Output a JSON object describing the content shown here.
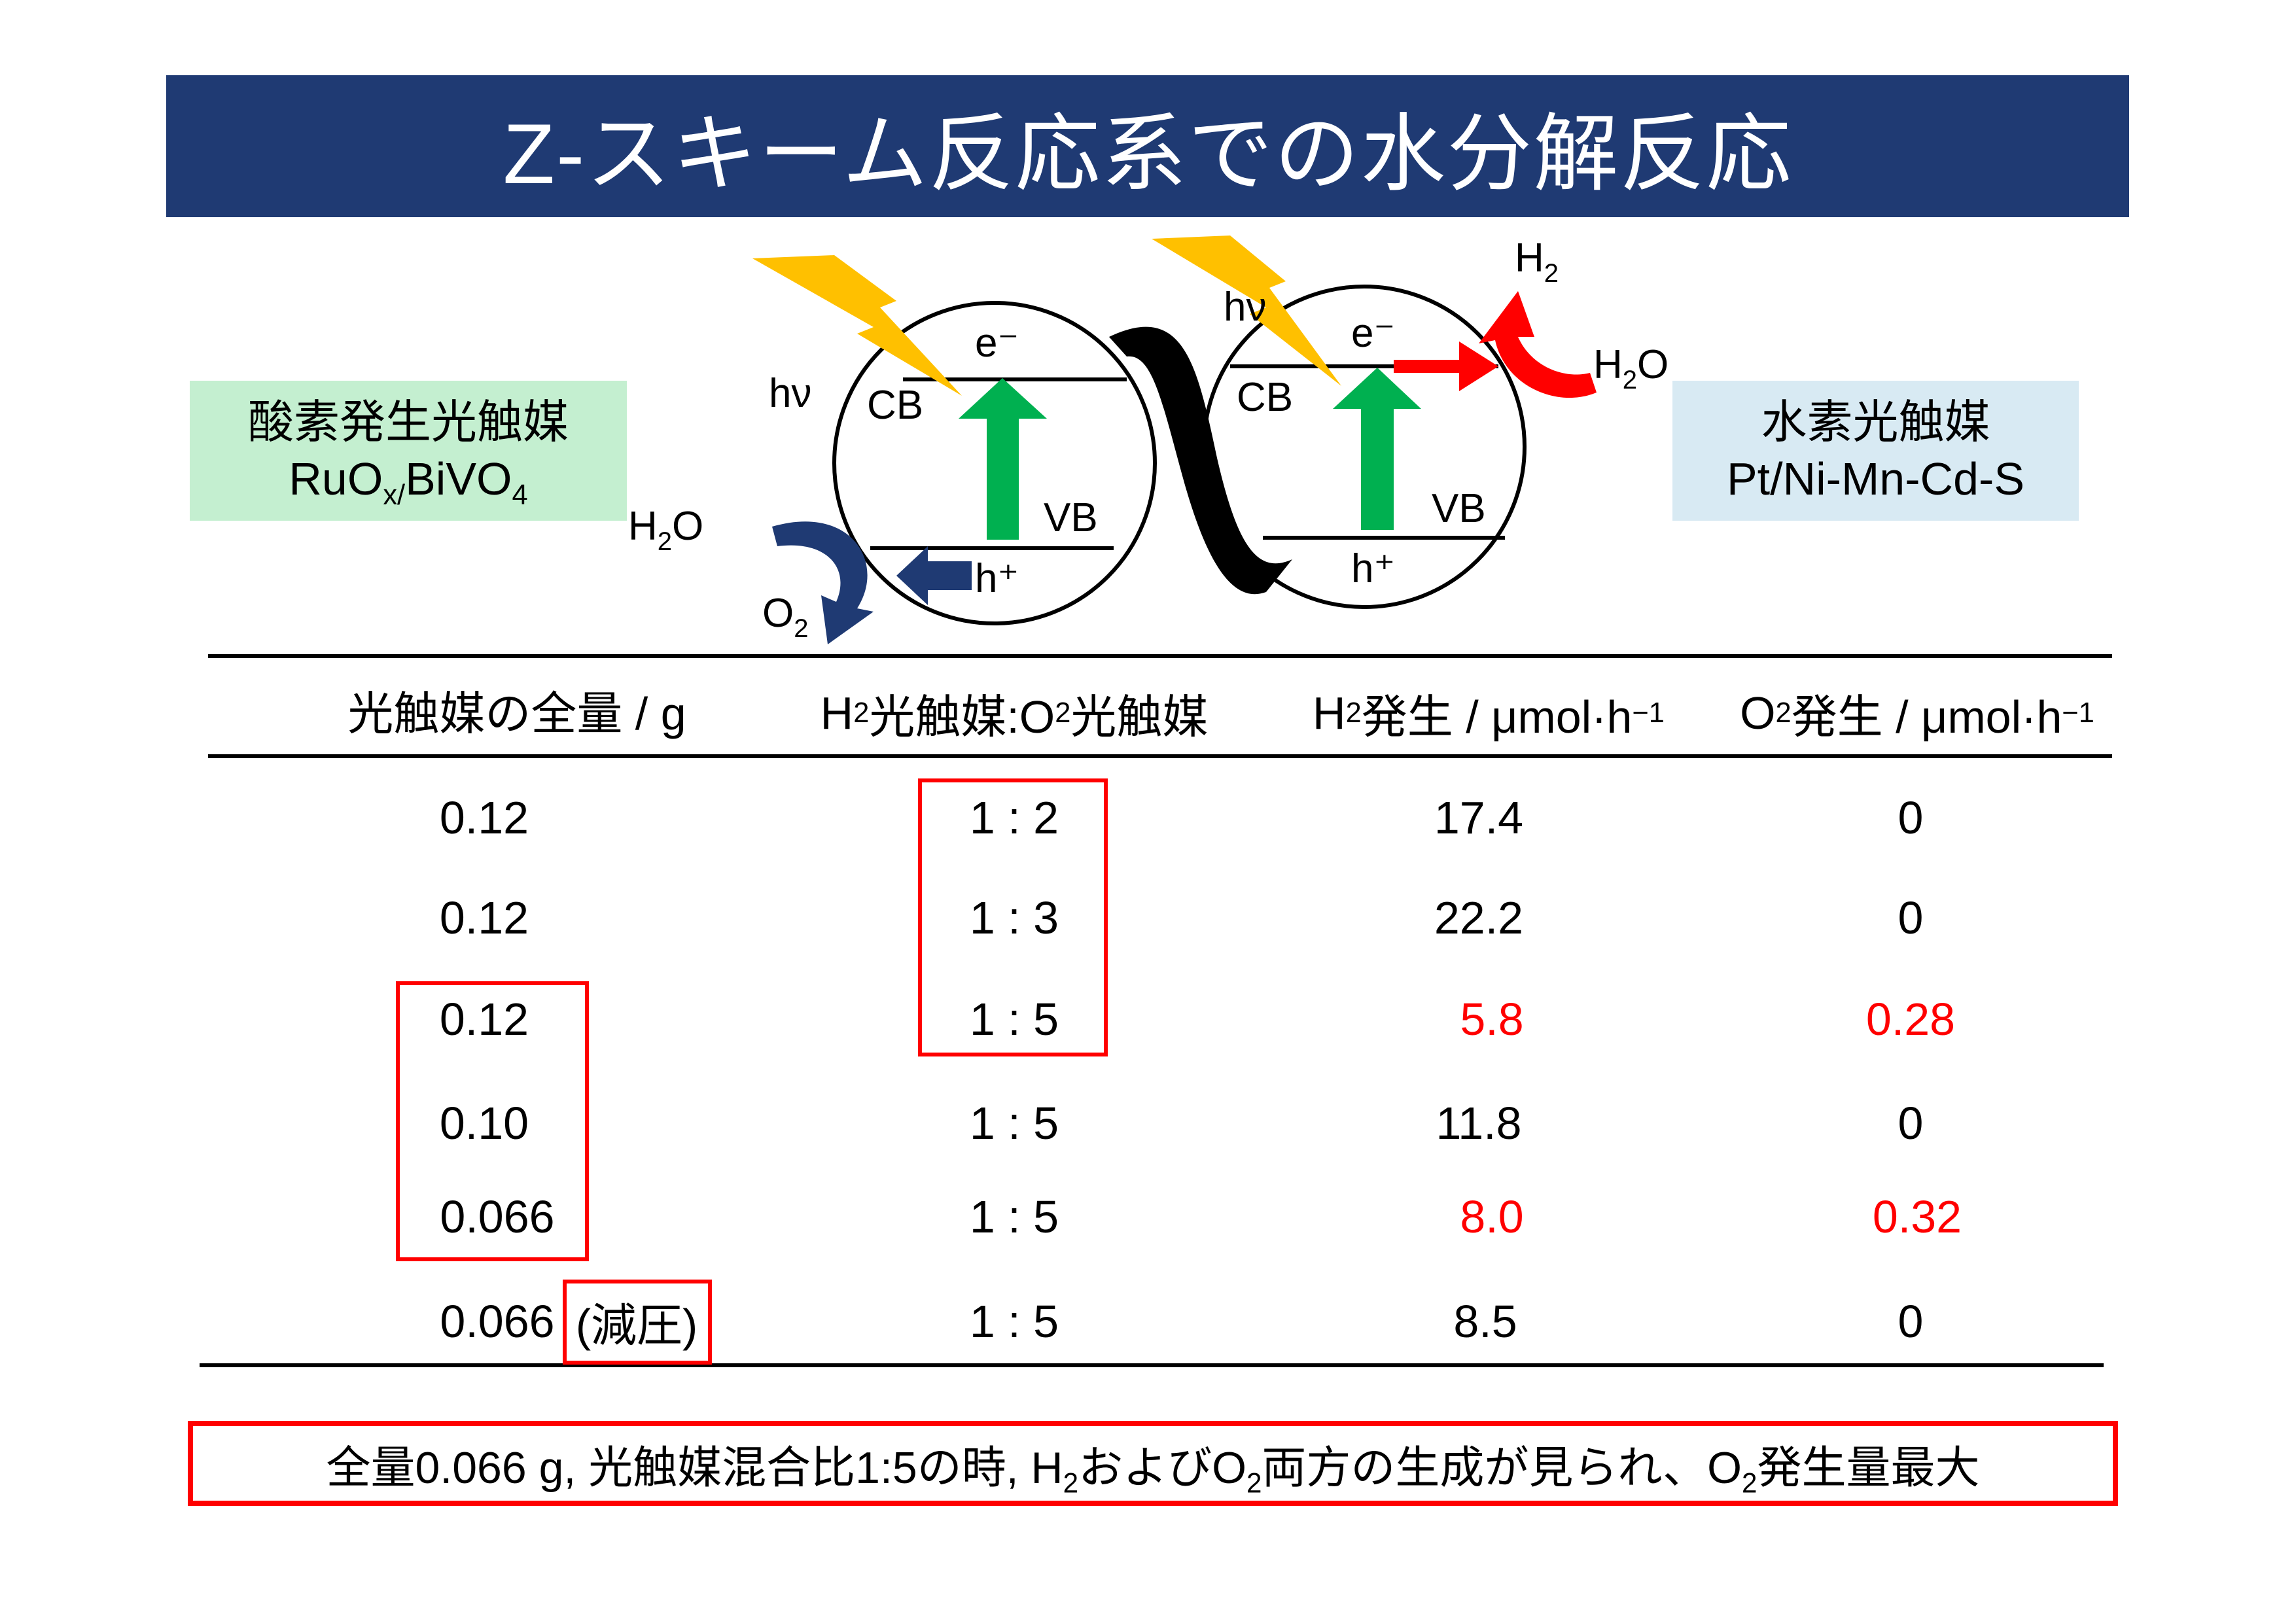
{
  "title": "Z-スキーム反応系での水分解反応",
  "o2_catalyst": {
    "name": "酸素発生光触媒",
    "formula_parts": [
      "RuO",
      "x/",
      "BiVO",
      "4"
    ]
  },
  "h2_catalyst": {
    "name": "水素光触媒",
    "formula": "Pt/Ni-Mn-Cd-S"
  },
  "scheme": {
    "hv": "hν",
    "electron": "e⁻",
    "hole": "h⁺",
    "cb": "CB",
    "vb": "VB",
    "h2o_left": [
      "H",
      "2",
      "O"
    ],
    "o2": [
      "O",
      "2"
    ],
    "h2": [
      "H",
      "2"
    ],
    "h2o_right": [
      "H",
      "2",
      "O"
    ]
  },
  "table": {
    "headers": {
      "total": "光触媒の全量 / g",
      "ratio_parts": [
        "H",
        "2",
        "光触媒:O",
        "2",
        "光触媒"
      ],
      "h2_parts": [
        "H",
        "2",
        "発生 / μmol·h",
        "−1"
      ],
      "o2_parts": [
        "O",
        "2",
        "発生 / μmol·h",
        "−1"
      ]
    },
    "rows": [
      {
        "total": "0.12",
        "ratio": "1 : 2",
        "h2": "17.4",
        "o2": "0",
        "note": ""
      },
      {
        "total": "0.12",
        "ratio": "1 : 3",
        "h2": "22.2",
        "o2": "0",
        "note": ""
      },
      {
        "total": "0.12",
        "ratio": "1 : 5",
        "h2": "5.8",
        "o2": "0.28",
        "note": ""
      },
      {
        "total": "0.10",
        "ratio": "1 : 5",
        "h2": "11.8",
        "o2": "0",
        "note": ""
      },
      {
        "total": "0.066",
        "ratio": "1 : 5",
        "h2": "8.0",
        "o2": "0.32",
        "note": ""
      },
      {
        "total": "0.066",
        "ratio": "1 : 5",
        "h2": "8.5",
        "o2": "0",
        "note": "(減圧)"
      }
    ]
  },
  "conclusion_parts": [
    "全量0.066 g, 光触媒混合比1:5の時, H",
    "2",
    "およびO",
    "2",
    "両方の生成が見られ、O",
    "2",
    "発生量最大"
  ],
  "colors": {
    "banner": "#1f3a73",
    "highlight": "#ff0000",
    "green_box": "#c4efd0",
    "blue_box": "#d8eaf3",
    "arrow_green": "#00b050",
    "lightning": "#ffc000",
    "arrow_navy": "#1f3a73"
  }
}
